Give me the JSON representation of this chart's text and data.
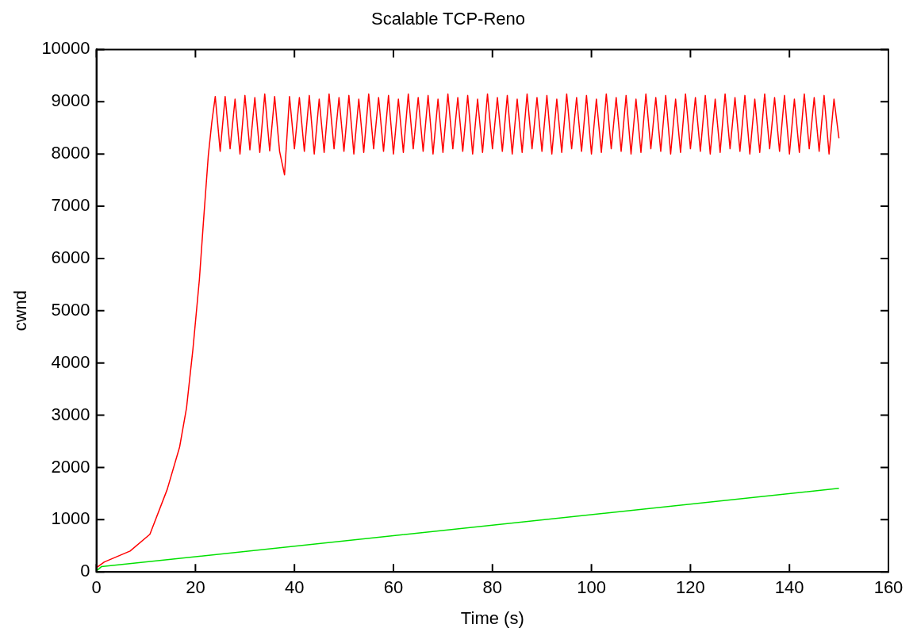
{
  "chart_data": {
    "type": "line",
    "title": "Scalable TCP-Reno",
    "xlabel": "Time (s)",
    "ylabel": "cwnd",
    "xlim": [
      0,
      160
    ],
    "xticks": [
      0,
      20,
      40,
      60,
      80,
      100,
      120,
      140,
      160
    ],
    "ylim": [
      0,
      10000
    ],
    "yticks": [
      0,
      1000,
      2000,
      3000,
      4000,
      5000,
      6000,
      7000,
      8000,
      9000,
      10000
    ],
    "grid": false,
    "legend": false,
    "marker": "none",
    "line_style": "solid",
    "series": [
      {
        "color": "#ff0000",
        "x": [
          0,
          1.6,
          6.8,
          10.8,
          14.3,
          16.8,
          18.2,
          19.5,
          20.8,
          21.6,
          22.6,
          23.3,
          24,
          25,
          26,
          27,
          28,
          29,
          30,
          31,
          32,
          33,
          34,
          35,
          36,
          37,
          38,
          39,
          40,
          41,
          42,
          43,
          44,
          45,
          46,
          47,
          48,
          49,
          50,
          51,
          52,
          53,
          54,
          55,
          56,
          57,
          58,
          59,
          60,
          61,
          62,
          63,
          64,
          65,
          66,
          67,
          68,
          69,
          70,
          71,
          72,
          73,
          74,
          75,
          76,
          77,
          78,
          79,
          80,
          81,
          82,
          83,
          84,
          85,
          86,
          87,
          88,
          89,
          90,
          91,
          92,
          93,
          94,
          95,
          96,
          97,
          98,
          99,
          100,
          101,
          102,
          103,
          104,
          105,
          106,
          107,
          108,
          109,
          110,
          111,
          112,
          113,
          114,
          115,
          116,
          117,
          118,
          119,
          120,
          121,
          122,
          123,
          124,
          125,
          126,
          127,
          128,
          129,
          130,
          131,
          132,
          133,
          134,
          135,
          136,
          137,
          138,
          139,
          140,
          141,
          142,
          143,
          144,
          145,
          146,
          147,
          148,
          149,
          150
        ],
        "values": [
          80,
          190,
          400,
          720,
          1580,
          2390,
          3140,
          4270,
          5600,
          6680,
          7970,
          8600,
          9100,
          8050,
          9100,
          8100,
          9050,
          8000,
          9120,
          8080,
          9080,
          8030,
          9150,
          8060,
          9100,
          8050,
          7600,
          9100,
          8100,
          9080,
          8050,
          9120,
          8000,
          9050,
          8030,
          9150,
          8100,
          9080,
          8050,
          9120,
          8000,
          9050,
          8030,
          9150,
          8100,
          9080,
          8050,
          9120,
          8000,
          9050,
          8030,
          9150,
          8100,
          9080,
          8050,
          9120,
          8000,
          9050,
          8030,
          9150,
          8100,
          9080,
          8050,
          9120,
          8000,
          9050,
          8030,
          9150,
          8100,
          9080,
          8050,
          9120,
          8000,
          9050,
          8030,
          9150,
          8100,
          9080,
          8050,
          9120,
          8000,
          9050,
          8030,
          9150,
          8100,
          9080,
          8050,
          9120,
          8000,
          9050,
          8030,
          9150,
          8100,
          9080,
          8050,
          9120,
          8000,
          9050,
          8030,
          9150,
          8100,
          9080,
          8050,
          9120,
          8000,
          9050,
          8030,
          9150,
          8100,
          9080,
          8050,
          9120,
          8000,
          9050,
          8030,
          9150,
          8100,
          9080,
          8050,
          9120,
          8000,
          9050,
          8030,
          9150,
          8100,
          9080,
          8050,
          9120,
          8000,
          9050,
          8030,
          9150,
          8100,
          9080,
          8050,
          9120,
          8000,
          9050,
          8300
        ]
      },
      {
        "color": "#00e000",
        "x": [
          0,
          1,
          150
        ],
        "values": [
          20,
          100,
          1600
        ]
      }
    ]
  }
}
